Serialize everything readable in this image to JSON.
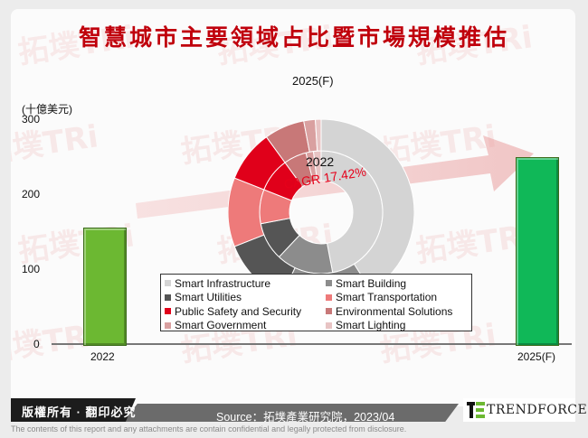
{
  "title": "智慧城市主要領域占比暨市場規模推估",
  "y_axis": {
    "unit_label": "(十億美元)",
    "ticks": [
      "300",
      "200",
      "100",
      "0"
    ]
  },
  "bars": [
    {
      "label": "2022",
      "value": 155,
      "color": "#6cb832"
    },
    {
      "label": "2025(F)",
      "value": 250,
      "color": "#10b858"
    }
  ],
  "donut": {
    "outer_label": "2025(F)",
    "inner_label": "2022",
    "cagr_label": "CAGR 17.42%"
  },
  "legend": [
    {
      "label": "Smart Infrastructure",
      "color": "#d4d4d4"
    },
    {
      "label": "Smart Building",
      "color": "#8c8c8c"
    },
    {
      "label": "Smart Utilities",
      "color": "#555555"
    },
    {
      "label": "Smart Transportation",
      "color": "#ee7a7a"
    },
    {
      "label": "Public Safety and Security",
      "color": "#e0001a"
    },
    {
      "label": "Environmental Solutions",
      "color": "#c87878"
    },
    {
      "label": "Smart Government",
      "color": "#d9a0a0"
    },
    {
      "label": "Smart Lighting",
      "color": "#e8c4c4"
    }
  ],
  "footer": {
    "copyright": "版權所有 · 翻印必究",
    "source": "Source：拓墣產業研究院，2023/04",
    "logo": "TRENDFORCE",
    "disclaimer": "The contents of this report and any attachments are contain confidential and legally protected from disclosure."
  },
  "chart_data": [
    {
      "type": "bar",
      "title": "智慧城市主要領域占比暨市場規模推估",
      "categories": [
        "2022",
        "2025(F)"
      ],
      "values": [
        155,
        250
      ],
      "ylabel": "(十億美元)",
      "ylim": [
        0,
        300
      ],
      "yticks": [
        0,
        100,
        200,
        300
      ],
      "annotations": [
        "CAGR 17.42%"
      ],
      "grid": false
    },
    {
      "type": "pie",
      "subtype": "nested-donut",
      "rings": [
        {
          "name": "2022",
          "ring": "inner",
          "labels": [
            "Smart Infrastructure",
            "Smart Building",
            "Smart Utilities",
            "Smart Transportation",
            "Public Safety and Security",
            "Environmental Solutions",
            "Smart Government",
            "Smart Lighting"
          ],
          "values": [
            47,
            15,
            10,
            9,
            9,
            6,
            2,
            2
          ]
        },
        {
          "name": "2025(F)",
          "ring": "outer",
          "labels": [
            "Smart Infrastructure",
            "Smart Building",
            "Smart Utilities",
            "Smart Transportation",
            "Public Safety and Security",
            "Environmental Solutions",
            "Smart Government",
            "Smart Lighting"
          ],
          "values": [
            41,
            16,
            12,
            12,
            9,
            7,
            2,
            1
          ]
        }
      ],
      "legend_position": "below-center",
      "unit": "% share (estimated)"
    }
  ]
}
